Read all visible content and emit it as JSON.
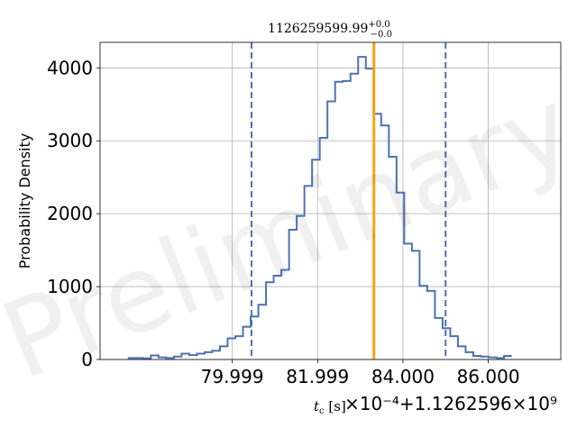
{
  "chart_data": {
    "type": "histogram",
    "title": "1126259599.99",
    "title_sup": "+0.0",
    "title_sub": "−0.0",
    "xlabel": "t_c [s]",
    "ylabel": "Probability Density",
    "x_offset_text": "×10⁻⁴+1.1262596×10⁹",
    "watermark": "Preliminary",
    "xlim": [
      76.9,
      87.7
    ],
    "ylim": [
      0,
      4350
    ],
    "x_ticks": [
      {
        "value": 79.999,
        "label": "79.999"
      },
      {
        "value": 81.999,
        "label": "81.999"
      },
      {
        "value": 84.0,
        "label": "84.000"
      },
      {
        "value": 86.0,
        "label": "86.000"
      }
    ],
    "y_ticks": [
      {
        "value": 0,
        "label": "0"
      },
      {
        "value": 1000,
        "label": "1000"
      },
      {
        "value": 2000,
        "label": "2000"
      },
      {
        "value": 3000,
        "label": "3000"
      },
      {
        "value": 4000,
        "label": "4000"
      }
    ],
    "bins": {
      "start": 77.55,
      "width": 0.18,
      "values": [
        20,
        20,
        15,
        55,
        30,
        20,
        40,
        80,
        60,
        80,
        100,
        120,
        180,
        290,
        320,
        450,
        590,
        750,
        1060,
        1150,
        1230,
        1780,
        1970,
        2380,
        2740,
        3040,
        3540,
        3810,
        3820,
        3920,
        4150,
        3990,
        3370,
        3210,
        2780,
        2290,
        1590,
        1490,
        1010,
        940,
        570,
        430,
        320,
        180,
        100,
        50,
        40,
        30,
        20,
        50
      ]
    },
    "vlines": [
      {
        "x": 80.45,
        "style": "dashed",
        "color": "#4c72b0"
      },
      {
        "x": 83.32,
        "style": "solid",
        "color": "#f5a40f"
      },
      {
        "x": 85.0,
        "style": "dashed",
        "color": "#4c72b0"
      }
    ],
    "grid": true,
    "colors": {
      "histogram": "#4c72b0",
      "median": "#f5a40f",
      "quantiles": "#4c72b0",
      "grid": "#b0b0b0"
    }
  }
}
